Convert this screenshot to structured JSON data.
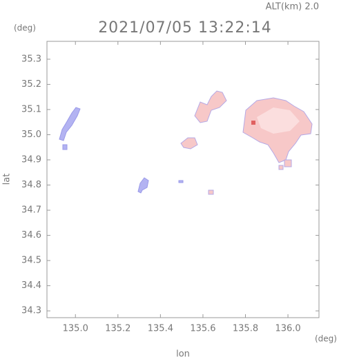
{
  "chart_data": {
    "type": "map",
    "title": "2021/07/05 13:22:14",
    "altitude_label": "ALT(km) 2.0",
    "y_unit": "(deg)",
    "x_unit": "(deg)",
    "xlabel": "lon",
    "ylabel": "lat",
    "xlim": [
      134.866,
      136.146
    ],
    "ylim": [
      34.273,
      35.371
    ],
    "xticks": [
      {
        "value": 135.0,
        "label": "135.0"
      },
      135.2,
      135.4,
      135.6,
      135.8,
      {
        "value": 136.0,
        "label": "136.0"
      }
    ],
    "yticks": [
      35.3,
      35.2,
      35.1,
      {
        "value": 35.0,
        "label": "35.0"
      },
      34.9,
      34.8,
      34.7,
      34.6,
      34.5,
      34.4,
      34.3
    ]
  }
}
